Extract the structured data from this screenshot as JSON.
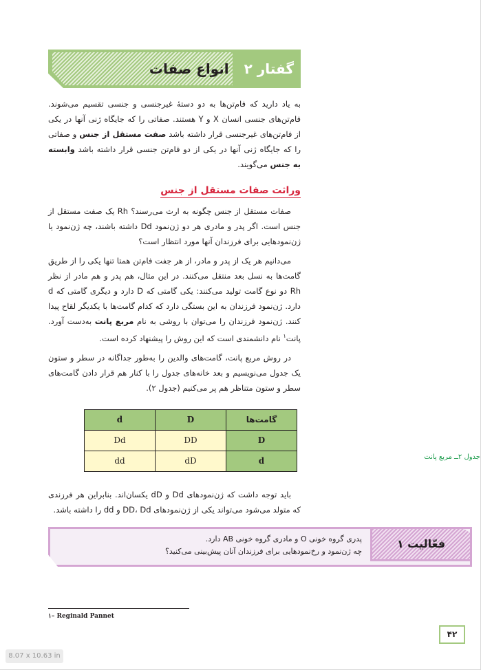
{
  "chapter": {
    "number": "گفتار ۲",
    "title": "انواع صفات"
  },
  "intro": {
    "p1": "به یاد دارید که فام‌تن‌ها به دو دستهٔ غیرجنسی و جنسی تقسیم می‌شوند. فام‌تن‌های جنسی انسان X و Y هستند. صفاتی را که جایگاه ژنی آنها در یکی از فام‌تن‌های غیرجنسی قرار داشته باشد ",
    "b1": "صفت مستقل از جنس",
    "p2": " و صفاتی را که جایگاه ژنی آنها در یکی از دو فام‌تن جنسی قرار داشته باشد ",
    "b2": "وابسته به جنس",
    "p3": " می‌گویند."
  },
  "section": {
    "heading": "وراثت صفات مستقل از جنس",
    "para1": "صفات مستقل از جنس چگونه به ارث می‌رسند؟ Rh یک صفت مستقل از جنس است. اگر پدر و مادری هر دو ژن‌نمود Dd داشته باشند، چه ژن‌نمود یا ژن‌نمودهایی برای فرزندان آنها مورد انتظار است؟",
    "para2a": "می‌دانیم هر یک از پدر و مادر، از هر جفت فام‌تن همتا تنها یکی را از طریق گامت‌ها به نسل بعد منتقل می‌کنند. در این مثال، هم پدر و هم مادر از نظر Rh دو نوع گامت تولید می‌کنند: یکی گامتی که D دارد و دیگری گامتی که d دارد. ژن‌نمود فرزندان به این بستگی دارد که کدام گامت‌ها با یکدیگر لقاح پیدا کنند. ژن‌نمود فرزندان را می‌توان با روشی به نام ",
    "para2b": "مربع پانت",
    "para2c": " به‌دست آورد. پانت",
    "para2sup": "۱",
    "para2d": " نام دانشمندی است که این روش را پیشنهاد کرده است.",
    "para3": "در روش مربع پانت، گامت‌های والدین را به‌طور جداگانه در سطر و ستون یک جدول می‌نویسیم و بعد خانه‌های جدول را با کنار هم قرار دادن گامت‌های سطر و ستون متناظر هم پر می‌کنیم (جدول ۲)."
  },
  "table": {
    "header": [
      "گامت‌ها",
      "D",
      "d"
    ],
    "rows": [
      [
        "D",
        "DD",
        "Dd"
      ],
      [
        "d",
        "dD",
        "dd"
      ]
    ],
    "caption": "جدول ۲ــ مربع پانت"
  },
  "after_table": "باید توجه داشت که ژن‌نمودهای Dd و dD یکسان‌اند. بنابراین هر فرزندی که متولد می‌شود می‌تواند یکی از ژن‌نمودهای DD، Dd و dd را داشته باشد.",
  "activity": {
    "label": "فعّالیت ۱",
    "line1": "پدری گروه خونی O و مادری گروه خونی AB دارد.",
    "line2": "چه ژن‌نمود و رخ‌نمودهایی برای فرزندان آنان پیش‌بینی می‌کنید؟"
  },
  "footnote": "۱– Reginald Pannet",
  "page_number": "۴۲",
  "page_size": "8.07 x 10.63 in",
  "colors": {
    "green": "#a3c97f",
    "heading_red": "#d7263d",
    "activity_purple": "#d4a5d2",
    "caption_green": "#1a9b4a"
  }
}
